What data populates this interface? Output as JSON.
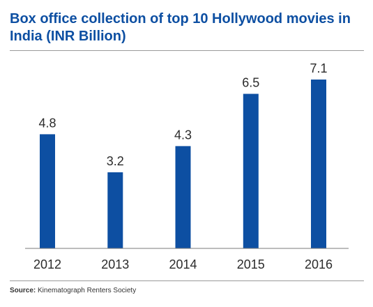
{
  "chart_data": {
    "type": "bar",
    "title": "Box office collection of top 10 Hollywood movies in India (INR Billion)",
    "categories": [
      "2012",
      "2013",
      "2014",
      "2015",
      "2016"
    ],
    "values": [
      4.8,
      3.2,
      4.3,
      6.5,
      7.1
    ],
    "value_labels": [
      "4.8",
      "3.2",
      "4.3",
      "6.5",
      "7.1"
    ],
    "xlabel": "",
    "ylabel": "",
    "ylim": [
      0,
      7.8
    ],
    "grid": false,
    "legend": "none",
    "bar_color": "#0d4fa2"
  },
  "source": {
    "key": "Source:",
    "text": "Kinematograph Renters Society"
  }
}
